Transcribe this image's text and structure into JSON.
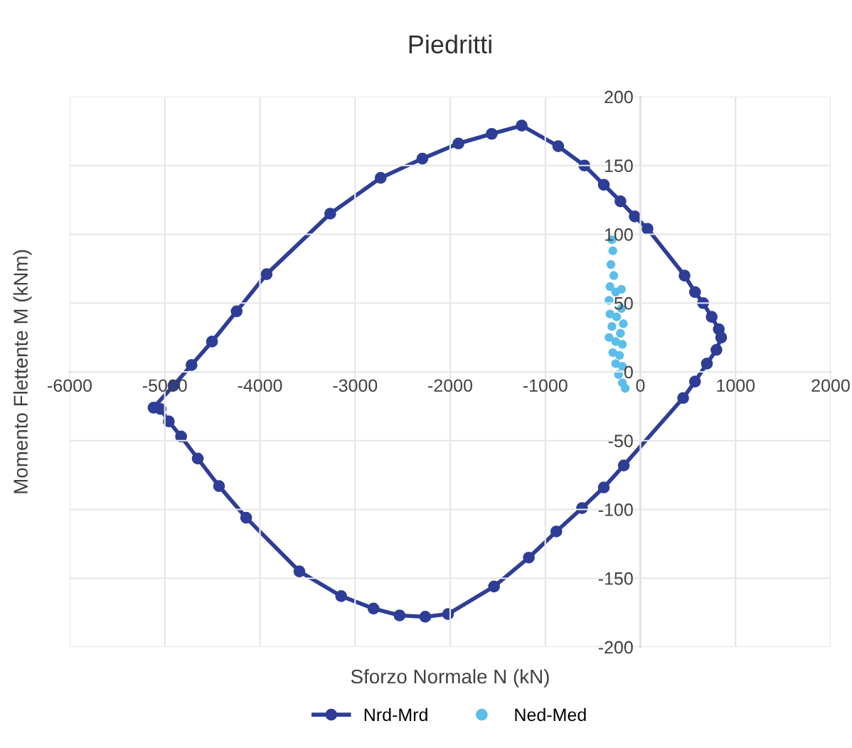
{
  "chart_data": {
    "type": "line",
    "title": "Piedritti",
    "xlabel": "Sforzo Normale N (kN)",
    "ylabel": "Momento Flettente M (kNm)",
    "xlim": [
      -6000,
      2000
    ],
    "xticks": [
      -6000,
      -5000,
      -4000,
      -3000,
      -2000,
      -1000,
      0,
      1000,
      2000
    ],
    "ylim": [
      -200,
      200
    ],
    "yticks": [
      -200,
      -150,
      -100,
      -50,
      0,
      50,
      100,
      150,
      200
    ],
    "grid": true,
    "legend": "bottom",
    "line_style": "solid",
    "series": [
      {
        "name": "Nrd-Mrd",
        "color": "#2e3d96",
        "marker": "circle",
        "x": [
          -5119,
          -4909,
          -4719,
          -4504,
          -4245,
          -3930,
          -3261,
          -2731,
          -2292,
          -1913,
          -1563,
          -1248,
          -864,
          -589,
          -385,
          -210,
          -60,
          75,
          464,
          574,
          659,
          749,
          824,
          849,
          799,
          699,
          574,
          449,
          -175,
          -385,
          -614,
          -884,
          -1173,
          -1539,
          -2022,
          -2262,
          -2532,
          -2806,
          -3146,
          -3585,
          -4145,
          -4430,
          -4654,
          -4829,
          -4958,
          -5044
        ],
        "values": [
          -26,
          -10,
          5,
          22,
          44,
          71,
          115,
          141,
          155,
          166,
          173,
          179,
          164,
          150,
          136,
          124,
          113,
          104,
          70,
          58,
          50,
          40,
          31,
          25,
          16,
          6,
          -7,
          -19,
          -68,
          -84,
          -99,
          -116,
          -135,
          -156,
          -176,
          -178,
          -177,
          -172,
          -163,
          -145,
          -106,
          -83,
          -63,
          -47,
          -36,
          -27
        ]
      },
      {
        "name": "Ned-Med",
        "color": "#5bbdea",
        "type": "scatter",
        "marker": "circle",
        "x": [
          -300,
          -290,
          -310,
          -280,
          -320,
          -260,
          -200,
          -330,
          -200,
          -320,
          -250,
          -180,
          -300,
          -210,
          -330,
          -260,
          -190,
          -290,
          -220,
          -260,
          -190,
          -230,
          -190,
          -160
        ],
        "values": [
          96,
          88,
          78,
          70,
          62,
          58,
          60,
          52,
          46,
          42,
          40,
          35,
          33,
          28,
          25,
          22,
          20,
          14,
          12,
          6,
          4,
          -2,
          -8,
          -12
        ]
      }
    ]
  }
}
